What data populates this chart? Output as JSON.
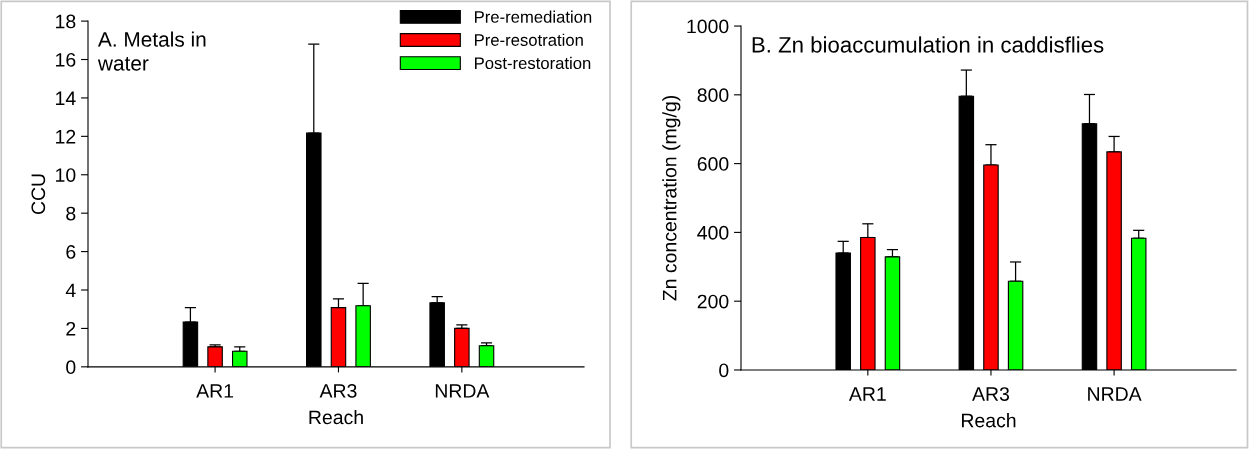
{
  "chart_data": [
    {
      "type": "bar",
      "title": "A. Metals in\nwater",
      "xlabel": "Reach",
      "ylabel": "CCU",
      "categories": [
        "AR1",
        "AR3",
        "NRDA"
      ],
      "ylim": [
        0,
        18
      ],
      "yticks": [
        0,
        2,
        4,
        6,
        8,
        10,
        12,
        14,
        16,
        18
      ],
      "legend": "top right",
      "grid": false,
      "series": [
        {
          "name": "Pre-remediation",
          "color": "#000000",
          "values": [
            2.33,
            12.17,
            3.33
          ],
          "errors": [
            [
              2.33,
              3.08
            ],
            [
              12.17,
              16.8
            ],
            [
              3.33,
              3.66
            ]
          ]
        },
        {
          "name": "Pre-resotration",
          "color": "#ff0000",
          "values": [
            1.04,
            3.08,
            2.0
          ],
          "errors": [
            [
              1.04,
              1.14
            ],
            [
              3.08,
              3.54
            ],
            [
              2.0,
              2.18
            ]
          ]
        },
        {
          "name": "Post-restoration",
          "color": "#00ff00",
          "values": [
            0.81,
            3.18,
            1.1
          ],
          "errors": [
            [
              0.81,
              1.04
            ],
            [
              3.18,
              4.35
            ],
            [
              1.1,
              1.25
            ]
          ]
        }
      ]
    },
    {
      "type": "bar",
      "title": "B. Zn bioaccumulation in caddisflies",
      "xlabel": "Reach",
      "ylabel": "Zn concentration (mg/g)",
      "categories": [
        "AR1",
        "AR3",
        "NRDA"
      ],
      "ylim": [
        0,
        1000
      ],
      "yticks": [
        0,
        200,
        400,
        600,
        800,
        1000
      ],
      "legend": false,
      "grid": false,
      "series": [
        {
          "color": "#000000",
          "values": [
            340,
            796,
            716
          ],
          "errors": [
            [
              340,
              374
            ],
            [
              796,
              872
            ],
            [
              716,
              801
            ]
          ]
        },
        {
          "color": "#ff0000",
          "values": [
            385,
            596,
            634
          ],
          "errors": [
            [
              385,
              425
            ],
            [
              596,
              655
            ],
            [
              634,
              679
            ]
          ]
        },
        {
          "color": "#00ff00",
          "values": [
            329,
            258,
            383
          ],
          "errors": [
            [
              329,
              350
            ],
            [
              258,
              314
            ],
            [
              383,
              406
            ]
          ]
        }
      ]
    }
  ]
}
